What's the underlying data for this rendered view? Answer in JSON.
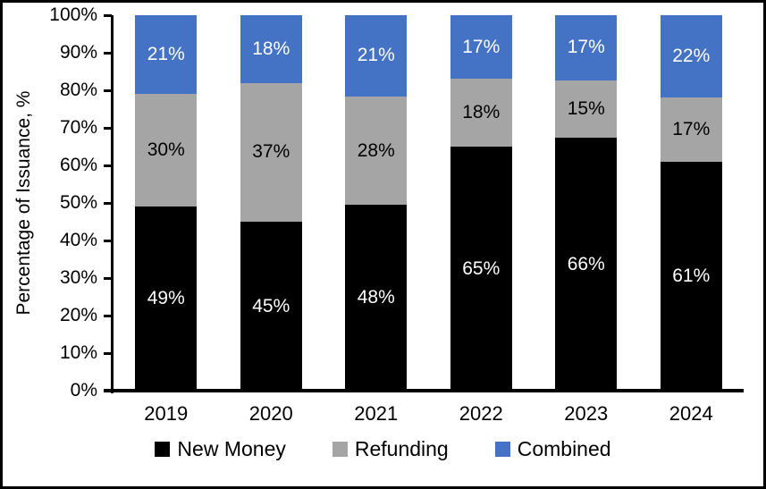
{
  "chart_data": {
    "type": "bar",
    "stacked": true,
    "title": "",
    "ylabel": "Percentage of Issuance, %",
    "xlabel": "",
    "ylim": [
      0,
      100
    ],
    "grid": false,
    "legend_position": "bottom",
    "categories": [
      "2019",
      "2020",
      "2021",
      "2022",
      "2023",
      "2024"
    ],
    "series": [
      {
        "name": "New Money",
        "color": "#000000",
        "label_color": "#ffffff",
        "values": [
          49,
          45,
          48,
          65,
          66,
          61
        ],
        "labels": [
          "49%",
          "45%",
          "48%",
          "65%",
          "66%",
          "61%"
        ]
      },
      {
        "name": "Refunding",
        "color": "#a5a5a5",
        "label_color": "#000000",
        "values": [
          30,
          37,
          28,
          18,
          15,
          17
        ],
        "labels": [
          "30%",
          "37%",
          "28%",
          "18%",
          "15%",
          "17%"
        ]
      },
      {
        "name": "Combined",
        "color": "#4472c4",
        "label_color": "#ffffff",
        "values": [
          21,
          18,
          21,
          17,
          17,
          22
        ],
        "labels": [
          "21%",
          "18%",
          "21%",
          "17%",
          "17%",
          "22%"
        ]
      }
    ],
    "y_ticks": [
      {
        "value": 0,
        "label": "0%"
      },
      {
        "value": 10,
        "label": "10%"
      },
      {
        "value": 20,
        "label": "20%"
      },
      {
        "value": 30,
        "label": "30%"
      },
      {
        "value": 40,
        "label": "40%"
      },
      {
        "value": 50,
        "label": "50%"
      },
      {
        "value": 60,
        "label": "60%"
      },
      {
        "value": 70,
        "label": "70%"
      },
      {
        "value": 80,
        "label": "80%"
      },
      {
        "value": 90,
        "label": "90%"
      },
      {
        "value": 100,
        "label": "100%"
      }
    ],
    "colors": {
      "axis": "#000000",
      "background": "#ffffff",
      "border": "#000000"
    }
  }
}
